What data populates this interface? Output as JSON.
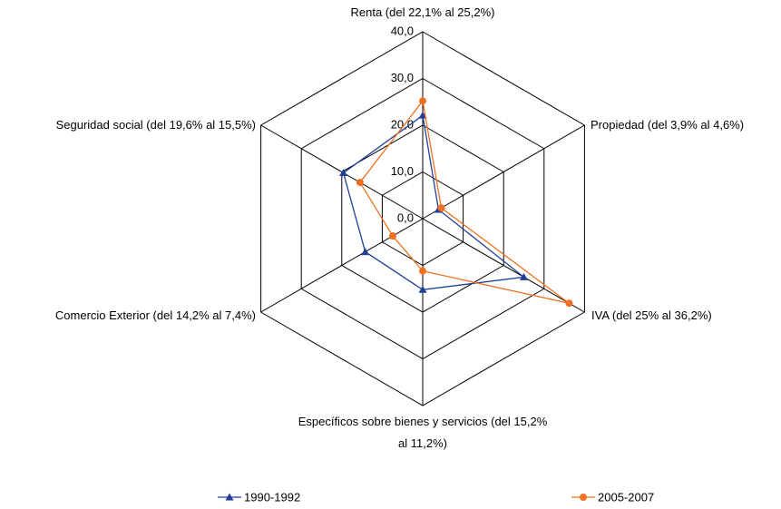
{
  "chart_data": {
    "type": "radar",
    "categories": [
      "Renta (del 22,1% al 25,2%)",
      "Propiedad (del 3,9% al 4,6%)",
      "IVA (del 25% al 36,2%)",
      "Específicos sobre bienes y servicios (del 15,2% al 11,2%)",
      "Comercio Exterior (del 14,2% al 7,4%)",
      "Seguridad social (del 19,6% al 15,5%)"
    ],
    "series": [
      {
        "name": "1990-1992",
        "color": "#1f3f99",
        "marker": "triangle",
        "values": [
          22.1,
          3.9,
          25,
          15.2,
          14.2,
          19.6
        ]
      },
      {
        "name": "2005-2007",
        "color": "#f07020",
        "marker": "circle",
        "values": [
          25.2,
          4.6,
          36.2,
          11.2,
          7.4,
          15.5
        ]
      }
    ],
    "rlim": [
      0,
      40
    ],
    "rticks": [
      {
        "value": 0,
        "label": "0,0"
      },
      {
        "value": 10,
        "label": "10,0"
      },
      {
        "value": 20,
        "label": "20,0"
      },
      {
        "value": 30,
        "label": "30,0"
      },
      {
        "value": 40,
        "label": "40,0"
      }
    ],
    "legend": "bottom"
  }
}
